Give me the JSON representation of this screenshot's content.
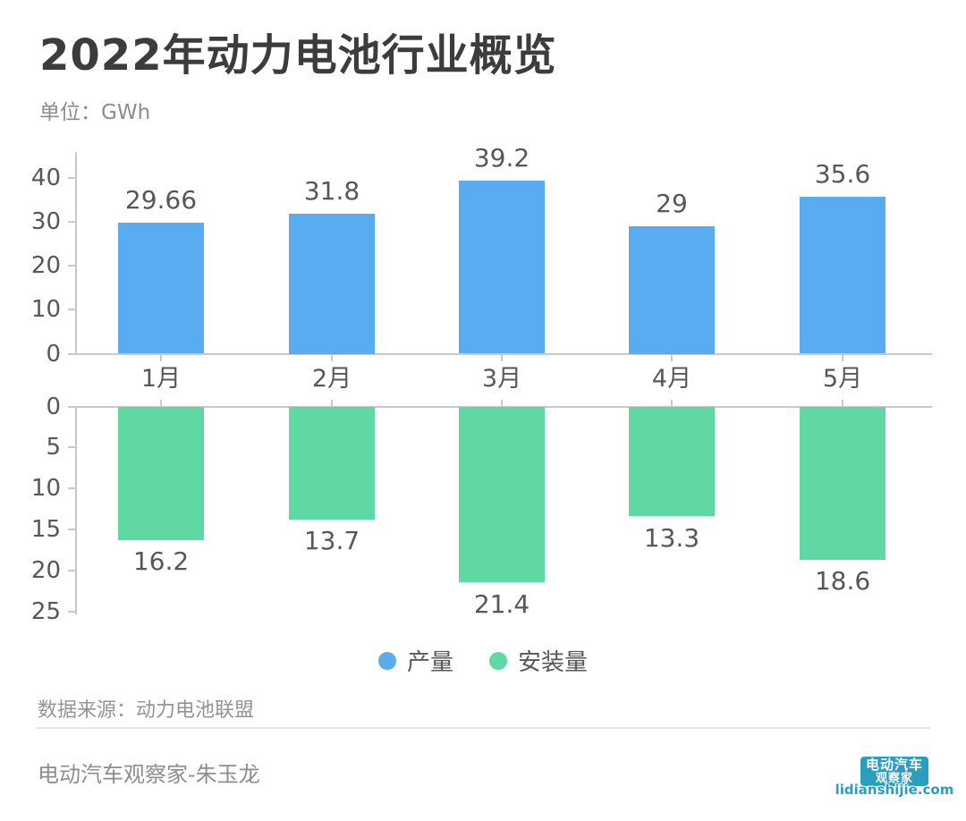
{
  "header": {
    "title": "2022年动力电池行业概览",
    "unit_label": "单位：GWh"
  },
  "chart_data": {
    "type": "bar",
    "title": "2022年动力电池行业概览",
    "unit": "GWh",
    "categories": [
      "1月",
      "2月",
      "3月",
      "4月",
      "5月"
    ],
    "series": [
      {
        "name": "产量",
        "color": "#5aacf1",
        "orientation": "up",
        "values": [
          29.66,
          31.8,
          39.2,
          29,
          35.6
        ],
        "value_labels": [
          "29.66",
          "31.8",
          "39.2",
          "29",
          "35.6"
        ],
        "axis_ticks": [
          0,
          10,
          20,
          30,
          40
        ],
        "axis_range": [
          0,
          45
        ]
      },
      {
        "name": "安装量",
        "color": "#5fd8a4",
        "orientation": "down",
        "values": [
          16.2,
          13.7,
          21.4,
          13.3,
          18.6
        ],
        "value_labels": [
          "16.2",
          "13.7",
          "21.4",
          "13.3",
          "18.6"
        ],
        "axis_ticks": [
          0,
          5,
          10,
          15,
          20,
          25
        ],
        "axis_range": [
          0,
          25
        ]
      }
    ],
    "legend": [
      "产量",
      "安装量"
    ],
    "legend_position": "bottom-center",
    "grid": false
  },
  "source": {
    "text": "数据来源：动力电池联盟"
  },
  "footer": {
    "author": "电动汽车观察家-朱玉龙"
  },
  "logo": {
    "line1": "电动汽车",
    "line2": "观察家",
    "url": "lidianshijie.com",
    "color": "#2b9dbe"
  }
}
